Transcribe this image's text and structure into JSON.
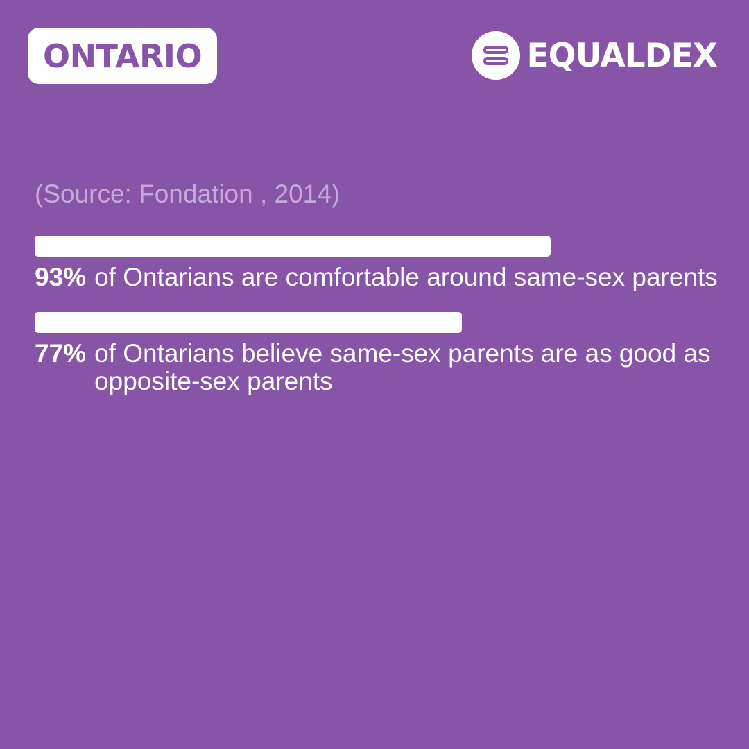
{
  "header": {
    "region": "ONTARIO",
    "brand": "EQUALDEX"
  },
  "source": "(Source: Fondation , 2014)",
  "colors": {
    "background": "#8754a8",
    "bar": "#ffffff",
    "source_text": "#c4a9d8"
  },
  "chart_data": {
    "type": "bar",
    "orientation": "horizontal",
    "xlim": [
      0,
      100
    ],
    "items": [
      {
        "value": 93,
        "value_label": "93%",
        "description": "of Ontarians are comfortable around same-sex parents"
      },
      {
        "value": 77,
        "value_label": "77%",
        "description": "of Ontarians believe same-sex parents are as good as opposite-sex parents"
      }
    ]
  }
}
